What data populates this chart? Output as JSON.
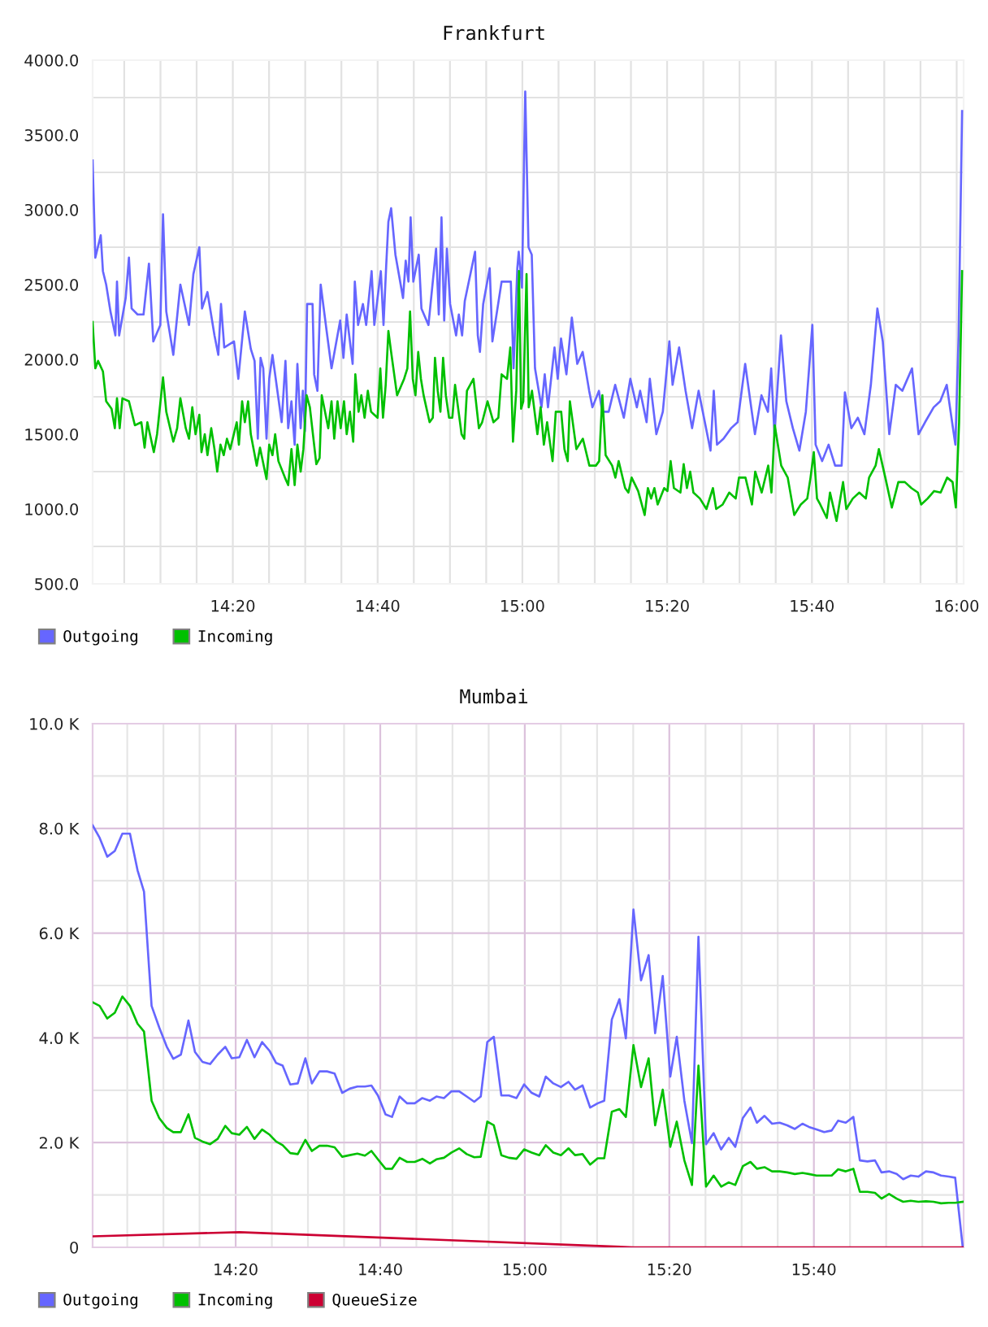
{
  "chart_data": [
    {
      "type": "line",
      "title": "Frankfurt",
      "xlim": [
        14.0105,
        16.016
      ],
      "ylim": [
        500,
        4000
      ],
      "xticks": [
        {
          "value": 14.0833,
          "label": null
        },
        {
          "value": 14.1667,
          "label": null
        },
        {
          "value": 14.25,
          "label": null
        },
        {
          "value": 14.3333,
          "label": "14:20"
        },
        {
          "value": 14.4167,
          "label": null
        },
        {
          "value": 14.5,
          "label": null
        },
        {
          "value": 14.5833,
          "label": null
        },
        {
          "value": 14.6667,
          "label": "14:40"
        },
        {
          "value": 14.75,
          "label": null
        },
        {
          "value": 14.8333,
          "label": null
        },
        {
          "value": 14.9167,
          "label": null
        },
        {
          "value": 15,
          "label": "15:00"
        },
        {
          "value": 15.0833,
          "label": null
        },
        {
          "value": 15.1667,
          "label": null
        },
        {
          "value": 15.25,
          "label": null
        },
        {
          "value": 15.3333,
          "label": "15:20"
        },
        {
          "value": 15.4167,
          "label": null
        },
        {
          "value": 15.5,
          "label": null
        },
        {
          "value": 15.5833,
          "label": null
        },
        {
          "value": 15.6667,
          "label": "15:40"
        },
        {
          "value": 15.75,
          "label": null
        },
        {
          "value": 15.8333,
          "label": null
        },
        {
          "value": 15.9167,
          "label": null
        },
        {
          "value": 16,
          "label": "16:00"
        }
      ],
      "yticks": [
        {
          "value": 500,
          "label": "500.0"
        },
        {
          "value": 750,
          "label": null
        },
        {
          "value": 1000,
          "label": "1000.0"
        },
        {
          "value": 1250,
          "label": null
        },
        {
          "value": 1500,
          "label": "1500.0"
        },
        {
          "value": 1750,
          "label": null
        },
        {
          "value": 2000,
          "label": "2000.0"
        },
        {
          "value": 2250,
          "label": null
        },
        {
          "value": 2500,
          "label": "2500.0"
        },
        {
          "value": 2750,
          "label": null
        },
        {
          "value": 3000,
          "label": "3000.0"
        },
        {
          "value": 3250,
          "label": null
        },
        {
          "value": 3500,
          "label": "3500.0"
        },
        {
          "value": 3750,
          "label": null
        },
        {
          "value": 4000,
          "label": "4000.0"
        }
      ],
      "grid": true,
      "legend": "bottom left",
      "series": [
        {
          "name": "Outgoing",
          "color": "#6666ff",
          "x": [
            14.0105,
            14.0167,
            14.0292,
            14.0342,
            14.0417,
            14.0516,
            14.0629,
            14.0666,
            14.0716,
            14.0866,
            14.0941,
            14.1003,
            14.114,
            14.1277,
            14.1402,
            14.1502,
            14.1664,
            14.1726,
            14.1801,
            14.1963,
            14.2125,
            14.2325,
            14.2425,
            14.2562,
            14.2624,
            14.2749,
            14.2911,
            14.2999,
            14.3061,
            14.3136,
            14.336,
            14.346,
            14.361,
            14.3747,
            14.3834,
            14.3909,
            14.3972,
            14.4034,
            14.4109,
            14.4171,
            14.4246,
            14.4458,
            14.4545,
            14.4608,
            14.4683,
            14.4757,
            14.482,
            14.4895,
            14.4945,
            14.4994,
            14.5044,
            14.5169,
            14.5206,
            14.5281,
            14.5356,
            14.5493,
            14.5606,
            14.5805,
            14.588,
            14.5955,
            14.6092,
            14.6142,
            14.6217,
            14.6329,
            14.6404,
            14.6529,
            14.6591,
            14.6741,
            14.6803,
            14.6865,
            14.6915,
            14.6978,
            14.7077,
            14.7252,
            14.7314,
            14.7377,
            14.7427,
            14.7489,
            14.7614,
            14.7676,
            14.7838,
            14.8013,
            14.8075,
            14.8138,
            14.82,
            14.8262,
            14.8337,
            14.8474,
            14.8537,
            14.8612,
            14.8674,
            14.8911,
            14.8974,
            14.9023,
            14.9098,
            14.9248,
            14.931,
            14.9522,
            14.9734,
            14.9797,
            14.9884,
            14.9916,
            14.9991,
            15.0066,
            15.0141,
            15.0216,
            15.0291,
            15.044,
            15.0515,
            15.059,
            15.074,
            15.0815,
            15.089,
            15.1014,
            15.1139,
            15.1264,
            15.1388,
            15.1538,
            15.1613,
            15.1763,
            15.1837,
            15.1987,
            15.2137,
            15.2336,
            15.2486,
            15.2636,
            15.2711,
            15.286,
            15.2935,
            15.3085,
            15.3234,
            15.3384,
            15.3459,
            15.3609,
            15.3758,
            15.3908,
            15.4058,
            15.4332,
            15.4407,
            15.4482,
            15.4632,
            15.4806,
            15.4956,
            15.513,
            15.5355,
            15.5505,
            15.5654,
            15.5729,
            15.5804,
            15.5954,
            15.6078,
            15.6228,
            15.6378,
            15.6527,
            15.6677,
            15.6752,
            15.6902,
            15.7051,
            15.7201,
            15.7351,
            15.7426,
            15.7575,
            15.7725,
            15.7875,
            15.8024,
            15.8174,
            15.8299,
            15.8448,
            15.8598,
            15.8748,
            15.8972,
            15.9122,
            15.9272,
            15.9471,
            15.9621,
            15.9771,
            15.9895,
            15.997,
            16.0045,
            16.0125
          ],
          "values": [
            3330,
            2680,
            2830,
            2590,
            2500,
            2320,
            2160,
            2520,
            2160,
            2410,
            2680,
            2340,
            2300,
            2300,
            2640,
            2120,
            2230,
            2970,
            2320,
            2030,
            2500,
            2230,
            2570,
            2750,
            2340,
            2450,
            2160,
            2030,
            2370,
            2080,
            2120,
            1870,
            2320,
            2070,
            1990,
            1470,
            2010,
            1940,
            1470,
            1870,
            2030,
            1580,
            1990,
            1540,
            1720,
            1430,
            1970,
            1540,
            1790,
            1520,
            2370,
            2370,
            1900,
            1790,
            2500,
            2190,
            1940,
            2260,
            2010,
            2300,
            1970,
            2520,
            2230,
            2370,
            2230,
            2590,
            2230,
            2590,
            2230,
            2630,
            2920,
            3010,
            2700,
            2410,
            2660,
            2520,
            2950,
            2520,
            2700,
            2340,
            2230,
            2740,
            2300,
            2950,
            2260,
            2740,
            2370,
            2160,
            2300,
            2160,
            2390,
            2720,
            2160,
            2050,
            2370,
            2610,
            2120,
            2520,
            2520,
            1940,
            2610,
            2720,
            2480,
            3790,
            2750,
            2700,
            1940,
            1680,
            1900,
            1680,
            2080,
            1870,
            2140,
            1900,
            2280,
            1970,
            2050,
            1790,
            1680,
            1790,
            1650,
            1650,
            1830,
            1610,
            1870,
            1680,
            1790,
            1580,
            1870,
            1500,
            1650,
            2120,
            1830,
            2080,
            1790,
            1540,
            1790,
            1390,
            1790,
            1430,
            1470,
            1540,
            1580,
            1970,
            1500,
            1760,
            1650,
            1940,
            1500,
            2160,
            1720,
            1540,
            1390,
            1650,
            2230,
            1430,
            1320,
            1430,
            1290,
            1290,
            1780,
            1540,
            1610,
            1500,
            1830,
            2340,
            2120,
            1500,
            1830,
            1790,
            1940,
            1500,
            1580,
            1680,
            1720,
            1830,
            1580,
            1430,
            2160,
            3660
          ]
        },
        {
          "name": "Incoming",
          "color": "#00c000",
          "x": [
            14.0105,
            14.0167,
            14.023,
            14.0342,
            14.0417,
            14.0541,
            14.0616,
            14.0666,
            14.0728,
            14.0791,
            14.0941,
            14.1078,
            14.1227,
            14.1302,
            14.1365,
            14.1514,
            14.1589,
            14.1726,
            14.1801,
            14.1963,
            14.2051,
            14.2125,
            14.225,
            14.2325,
            14.24,
            14.2475,
            14.2562,
            14.2612,
            14.2687,
            14.2749,
            14.2836,
            14.2911,
            14.2974,
            14.3049,
            14.3124,
            14.3198,
            14.3273,
            14.3423,
            14.3473,
            14.3547,
            14.361,
            14.3685,
            14.3747,
            14.3884,
            14.3959,
            14.4109,
            14.4171,
            14.4246,
            14.4308,
            14.4383,
            14.4533,
            14.4608,
            14.4683,
            14.4757,
            14.482,
            14.4895,
            14.4958,
            14.5032,
            14.5107,
            14.5256,
            14.5331,
            14.5381,
            14.5531,
            14.5606,
            14.5668,
            14.5743,
            14.5818,
            14.5893,
            14.5955,
            14.603,
            14.6105,
            14.6154,
            14.6229,
            14.6292,
            14.6367,
            14.6442,
            14.6516,
            14.6666,
            14.6729,
            14.6791,
            14.6853,
            14.6915,
            14.6978,
            14.7115,
            14.7277,
            14.7352,
            14.7414,
            14.7477,
            14.7539,
            14.7602,
            14.7664,
            14.7726,
            14.7864,
            14.7938,
            14.7988,
            14.8051,
            14.8113,
            14.8175,
            14.8238,
            14.8312,
            14.8387,
            14.845,
            14.86,
            14.8662,
            14.8724,
            14.8874,
            14.8999,
            14.9074,
            14.9198,
            14.9335,
            14.9447,
            14.9522,
            14.9647,
            14.9722,
            14.9784,
            14.9859,
            14.9922,
            14.9971,
            15.0021,
            15.0096,
            15.0146,
            15.0221,
            15.0346,
            15.042,
            15.0495,
            15.057,
            15.0695,
            15.0769,
            15.0894,
            15.0969,
            15.1044,
            15.1094,
            15.1244,
            15.1393,
            15.1543,
            15.1693,
            15.1768,
            15.1842,
            15.1917,
            15.2067,
            15.2142,
            15.2217,
            15.2366,
            15.2441,
            15.2516,
            15.2666,
            15.2816,
            15.289,
            15.2965,
            15.304,
            15.3115,
            15.3265,
            15.334,
            15.3414,
            15.3489,
            15.3639,
            15.3714,
            15.3789,
            15.3864,
            15.3938,
            15.4088,
            15.4238,
            15.4388,
            15.4463,
            15.4612,
            15.4762,
            15.4912,
            15.4987,
            15.5137,
            15.5286,
            15.5361,
            15.5511,
            15.5661,
            15.5736,
            15.5811,
            15.596,
            15.611,
            15.626,
            15.641,
            15.656,
            15.6635,
            15.671,
            15.6784,
            15.6859,
            15.7009,
            15.7084,
            15.7234,
            15.7384,
            15.7459,
            15.7608,
            15.7758,
            15.7908,
            15.7983,
            15.8133,
            15.8208,
            15.8357,
            15.8507,
            15.8657,
            15.8807,
            15.8957,
            15.9107,
            15.9182,
            15.9331,
            15.9481,
            15.9631,
            15.9781,
            15.9906,
            15.9981,
            16.0056,
            16.0125
          ],
          "values": [
            2250,
            1940,
            1990,
            1920,
            1720,
            1670,
            1540,
            1740,
            1540,
            1740,
            1720,
            1560,
            1580,
            1410,
            1580,
            1380,
            1500,
            1880,
            1650,
            1450,
            1540,
            1740,
            1540,
            1470,
            1680,
            1500,
            1630,
            1380,
            1500,
            1360,
            1540,
            1400,
            1250,
            1430,
            1360,
            1470,
            1400,
            1580,
            1430,
            1720,
            1580,
            1720,
            1500,
            1290,
            1410,
            1200,
            1430,
            1360,
            1500,
            1320,
            1210,
            1160,
            1400,
            1160,
            1430,
            1250,
            1400,
            1760,
            1680,
            1300,
            1340,
            1760,
            1540,
            1720,
            1470,
            1720,
            1540,
            1720,
            1500,
            1650,
            1450,
            1900,
            1650,
            1760,
            1610,
            1790,
            1650,
            1610,
            1940,
            1610,
            1830,
            2190,
            2050,
            1760,
            1870,
            1940,
            2320,
            1870,
            1760,
            2050,
            1870,
            1760,
            1580,
            1610,
            2010,
            1790,
            1650,
            2010,
            1760,
            1610,
            1610,
            1830,
            1500,
            1470,
            1790,
            1870,
            1540,
            1580,
            1720,
            1580,
            1610,
            1900,
            1870,
            2080,
            1450,
            1790,
            2590,
            1670,
            1720,
            2570,
            1680,
            1790,
            1500,
            1680,
            1430,
            1580,
            1320,
            1650,
            1650,
            1400,
            1320,
            1720,
            1400,
            1470,
            1290,
            1290,
            1320,
            1760,
            1360,
            1290,
            1210,
            1320,
            1140,
            1110,
            1210,
            1120,
            960,
            1140,
            1070,
            1140,
            1030,
            1140,
            1120,
            1320,
            1140,
            1110,
            1300,
            1140,
            1250,
            1110,
            1070,
            1000,
            1140,
            1000,
            1030,
            1110,
            1070,
            1210,
            1210,
            1030,
            1250,
            1110,
            1290,
            1110,
            1560,
            1290,
            1210,
            960,
            1030,
            1070,
            1210,
            1380,
            1070,
            1030,
            940,
            1110,
            920,
            1180,
            1000,
            1070,
            1110,
            1070,
            1210,
            1290,
            1400,
            1210,
            1010,
            1180,
            1180,
            1140,
            1110,
            1030,
            1070,
            1120,
            1110,
            1210,
            1180,
            1010,
            1580,
            2590
          ]
        }
      ]
    },
    {
      "type": "line",
      "title": "Mumbai",
      "xlim": [
        14.0034,
        16.012
      ],
      "ylim": [
        0,
        10000
      ],
      "xticks": [
        {
          "value": 14.0833,
          "label": null
        },
        {
          "value": 14.1667,
          "label": null
        },
        {
          "value": 14.25,
          "label": null
        },
        {
          "value": 14.3333,
          "label": "14:20"
        },
        {
          "value": 14.4167,
          "label": null
        },
        {
          "value": 14.5,
          "label": null
        },
        {
          "value": 14.5833,
          "label": null
        },
        {
          "value": 14.6667,
          "label": "14:40"
        },
        {
          "value": 14.75,
          "label": null
        },
        {
          "value": 14.8333,
          "label": null
        },
        {
          "value": 14.9167,
          "label": null
        },
        {
          "value": 15,
          "label": "15:00"
        },
        {
          "value": 15.0833,
          "label": null
        },
        {
          "value": 15.1667,
          "label": null
        },
        {
          "value": 15.25,
          "label": null
        },
        {
          "value": 15.3333,
          "label": "15:20"
        },
        {
          "value": 15.4167,
          "label": null
        },
        {
          "value": 15.5,
          "label": null
        },
        {
          "value": 15.5833,
          "label": null
        },
        {
          "value": 15.6667,
          "label": "15:40"
        },
        {
          "value": 15.75,
          "label": null
        },
        {
          "value": 15.8333,
          "label": null
        },
        {
          "value": 15.9167,
          "label": null
        }
      ],
      "yticks": [
        0,
        {
          "value": 1000,
          "label": null
        },
        {
          "value": 2000,
          "label": "2.0 K"
        },
        {
          "value": 3000,
          "label": null
        },
        {
          "value": 4000,
          "label": "4.0 K"
        },
        {
          "value": 5000,
          "label": null
        },
        {
          "value": 6000,
          "label": "6.0 K"
        },
        {
          "value": 7000,
          "label": null
        },
        {
          "value": 8000,
          "label": "8.0 K"
        },
        {
          "value": 9000,
          "label": null
        },
        {
          "value": 10000,
          "label": "10.0 K"
        }
      ],
      "grid": true,
      "legend": "bottom left",
      "x": [
        14.0034,
        14.0196,
        14.0371,
        14.0546,
        14.072,
        14.0895,
        14.107,
        14.1219,
        14.1394,
        14.1569,
        14.1744,
        14.1894,
        14.2069,
        14.2244,
        14.2394,
        14.2568,
        14.2743,
        14.2918,
        14.3093,
        14.3243,
        14.3417,
        14.3592,
        14.3767,
        14.3942,
        14.4116,
        14.4266,
        14.4416,
        14.4591,
        14.4765,
        14.494,
        14.509,
        14.5265,
        14.5439,
        14.5614,
        14.5789,
        14.5964,
        14.6139,
        14.6313,
        14.6463,
        14.6613,
        14.6788,
        14.6938,
        14.7113,
        14.7287,
        14.7462,
        14.7637,
        14.7812,
        14.7962,
        14.8136,
        14.8311,
        14.8486,
        14.8661,
        14.8835,
        14.8985,
        14.9135,
        14.9285,
        14.9459,
        14.9634,
        14.9809,
        14.9984,
        15.0159,
        15.0334,
        15.0483,
        15.0658,
        15.0833,
        15.1008,
        15.1158,
        15.1332,
        15.1507,
        15.1682,
        15.1832,
        15.2007,
        15.2182,
        15.2331,
        15.2506,
        15.2681,
        15.2856,
        15.3006,
        15.3181,
        15.3355,
        15.3505,
        15.368,
        15.3855,
        15.4005,
        15.418,
        15.4355,
        15.4529,
        15.4704,
        15.4854,
        15.5029,
        15.5204,
        15.5353,
        15.5528,
        15.5703,
        15.5878,
        15.6053,
        15.6228,
        15.6403,
        15.6552,
        15.6727,
        15.6902,
        15.7077,
        15.7227,
        15.7402,
        15.7577,
        15.7727,
        15.7901,
        15.8076,
        15.8226,
        15.8401,
        15.8576,
        15.8726,
        15.8901,
        15.9076,
        15.9251,
        15.9426,
        15.96,
        15.9775,
        15.9925,
        16.01
      ],
      "series": [
        {
          "name": "Outgoing",
          "color": "#6666ff",
          "values": [
            8060,
            7820,
            7460,
            7570,
            7900,
            7900,
            7200,
            6790,
            4610,
            4200,
            3830,
            3600,
            3680,
            4330,
            3730,
            3540,
            3500,
            3680,
            3830,
            3610,
            3630,
            3960,
            3630,
            3920,
            3750,
            3520,
            3470,
            3110,
            3130,
            3610,
            3130,
            3360,
            3360,
            3320,
            2950,
            3030,
            3070,
            3070,
            3090,
            2900,
            2540,
            2490,
            2880,
            2750,
            2750,
            2850,
            2800,
            2880,
            2850,
            2980,
            2980,
            2880,
            2780,
            2880,
            3920,
            4020,
            2900,
            2900,
            2850,
            3110,
            2950,
            2880,
            3260,
            3130,
            3060,
            3160,
            3010,
            3090,
            2670,
            2750,
            2800,
            4350,
            4740,
            3990,
            6450,
            5100,
            5580,
            4090,
            5180,
            3260,
            4020,
            2800,
            1990,
            5930,
            1970,
            2180,
            1870,
            2090,
            1920,
            2470,
            2670,
            2380,
            2510,
            2360,
            2380,
            2330,
            2260,
            2360,
            2300,
            2250,
            2200,
            2230,
            2420,
            2380,
            2490,
            1660,
            1640,
            1660,
            1430,
            1450,
            1400,
            1300,
            1370,
            1350,
            1450,
            1430,
            1370,
            1350,
            1330,
            0
          ]
        },
        {
          "name": "Incoming",
          "color": "#00c000",
          "values": [
            4680,
            4610,
            4370,
            4480,
            4790,
            4610,
            4270,
            4120,
            2800,
            2470,
            2280,
            2200,
            2200,
            2540,
            2090,
            2020,
            1970,
            2070,
            2320,
            2180,
            2150,
            2300,
            2070,
            2250,
            2150,
            2020,
            1950,
            1800,
            1780,
            2050,
            1840,
            1940,
            1940,
            1910,
            1730,
            1760,
            1790,
            1750,
            1840,
            1680,
            1500,
            1500,
            1710,
            1630,
            1630,
            1690,
            1600,
            1680,
            1710,
            1810,
            1890,
            1780,
            1720,
            1730,
            2400,
            2330,
            1760,
            1710,
            1690,
            1870,
            1810,
            1760,
            1950,
            1810,
            1760,
            1890,
            1760,
            1780,
            1580,
            1700,
            1700,
            2590,
            2640,
            2490,
            3860,
            3060,
            3610,
            2330,
            3010,
            1920,
            2400,
            1660,
            1190,
            3470,
            1160,
            1370,
            1160,
            1240,
            1190,
            1550,
            1630,
            1500,
            1530,
            1450,
            1450,
            1430,
            1400,
            1420,
            1400,
            1370,
            1370,
            1370,
            1490,
            1450,
            1500,
            1060,
            1060,
            1040,
            930,
            1020,
            930,
            870,
            890,
            870,
            880,
            870,
            840,
            850,
            850,
            870
          ]
        },
        {
          "name": "QueueSize",
          "color": "#cc0033",
          "x": [
            14.0034,
            14.3417,
            15.25,
            16.01
          ],
          "values": [
            210,
            290,
            0,
            0
          ]
        }
      ]
    }
  ]
}
